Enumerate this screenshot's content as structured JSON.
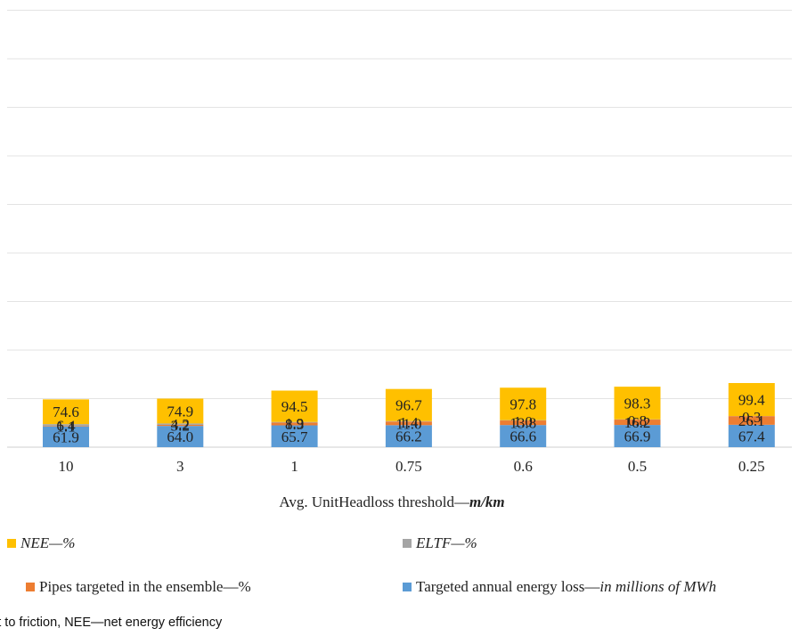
{
  "chart_data": {
    "type": "bar",
    "stacked": true,
    "categories": [
      "10",
      "3",
      "1",
      "0.75",
      "0.6",
      "0.5",
      "0.25"
    ],
    "xlabel_prefix": "Avg. UnitHeadloss threshold—",
    "xlabel_unit": "m/km",
    "grid": true,
    "legend_position": "bottom",
    "series": [
      {
        "key": "energy",
        "color": "#5b9bd5",
        "values": [
          61.9,
          64.0,
          65.7,
          66.2,
          66.6,
          66.9,
          67.4
        ]
      },
      {
        "key": "pipes",
        "color": "#ed7d31",
        "values": [
          1.1,
          3.2,
          8.3,
          11.0,
          13.8,
          16.2,
          26.1
        ]
      },
      {
        "key": "eltf",
        "color": "#a5a5a5",
        "values": [
          6.4,
          4.2,
          1.9,
          1.4,
          1.0,
          0.8,
          0.3
        ]
      },
      {
        "key": "nee",
        "color": "#ffc000",
        "values": [
          74.6,
          74.9,
          94.5,
          96.7,
          97.8,
          98.3,
          99.4
        ]
      }
    ],
    "value_labels": {
      "energy": [
        "61.9",
        "64.0",
        "65.7",
        "66.2",
        "66.6",
        "66.9",
        "67.4"
      ],
      "pipes": [
        "1.1",
        "3.2",
        "8.3",
        "11.0",
        "13.8",
        "16.2",
        "26.1"
      ],
      "eltf": [
        "6.4",
        "4.2",
        "1.9",
        "1.4",
        "1.0",
        "0.8",
        "0.3"
      ],
      "nee": [
        "74.6",
        "74.9",
        "94.5",
        "96.7",
        "97.8",
        "98.3",
        "99.4"
      ]
    }
  },
  "legend": {
    "nee": {
      "main": "",
      "unit": "NEE—%"
    },
    "eltf": {
      "main": "",
      "unit": "ELTF—%"
    },
    "pipes": {
      "main": "Pipes targeted in the ensemble—%",
      "unit": ""
    },
    "energy": {
      "main": "Targeted annual energy loss—",
      "unit": "in millions of MWh"
    }
  },
  "caption": "st to friction, NEE—net energy efficiency"
}
